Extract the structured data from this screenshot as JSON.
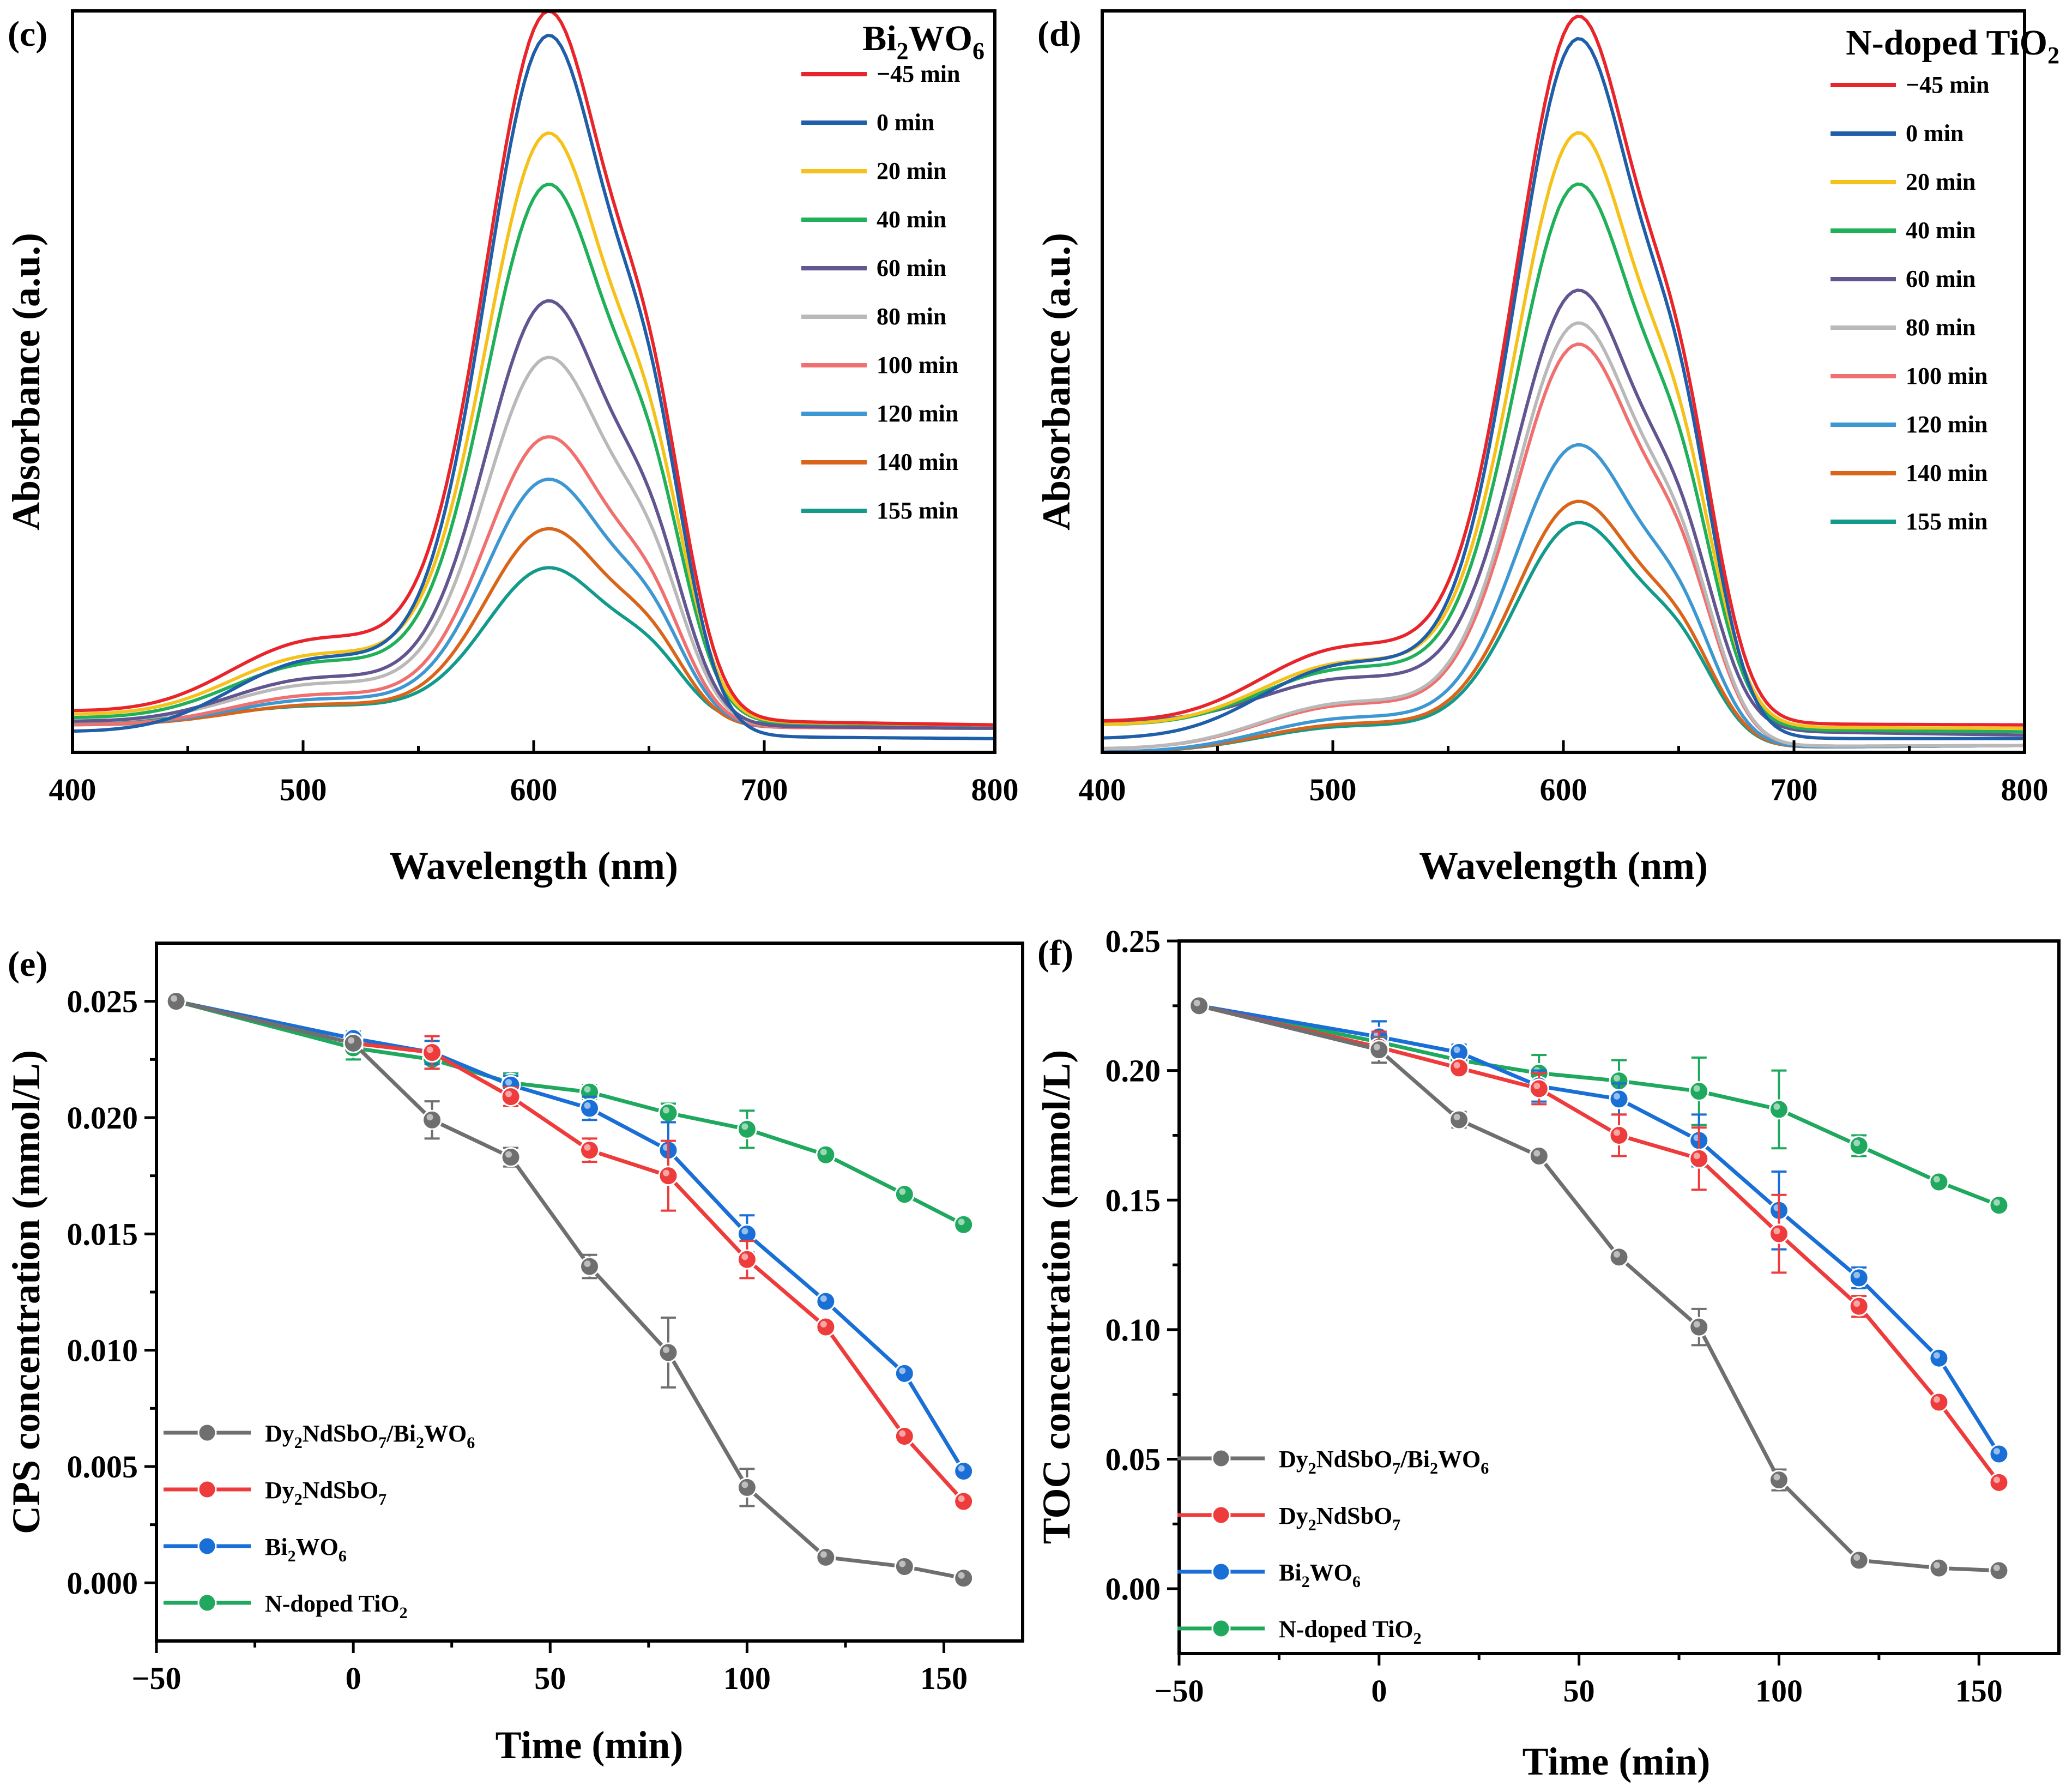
{
  "chart_data": [
    {
      "id": "c",
      "type": "line",
      "panel_label": "(c)",
      "title_parts": [
        "Bi",
        "2",
        "WO",
        "6"
      ],
      "xlabel": "Wavelength (nm)",
      "ylabel": "Absorbance (a.u.)",
      "xlim": [
        400,
        800
      ],
      "ylim": [
        0,
        1.08
      ],
      "xticks": [
        400,
        500,
        600,
        700,
        800
      ],
      "xtick_labels": [
        "400",
        "500",
        "600",
        "700",
        "800"
      ],
      "legend_position": "top-right",
      "series": [
        {
          "name": "−45 min",
          "color": "#e8252b",
          "peak": 1.0,
          "base_left": 0.06,
          "base_right": 0.04
        },
        {
          "name": "0 min",
          "color": "#1f5ea8",
          "peak": 0.99,
          "base_left": 0.03,
          "base_right": 0.02
        },
        {
          "name": "20 min",
          "color": "#f5c21b",
          "peak": 0.83,
          "base_left": 0.055,
          "base_right": 0.04
        },
        {
          "name": "40 min",
          "color": "#21b05a",
          "peak": 0.76,
          "base_left": 0.05,
          "base_right": 0.04
        },
        {
          "name": "60 min",
          "color": "#63558f",
          "peak": 0.6,
          "base_left": 0.045,
          "base_right": 0.035
        },
        {
          "name": "80 min",
          "color": "#b9b9b9",
          "peak": 0.52,
          "base_left": 0.045,
          "base_right": 0.035
        },
        {
          "name": "100 min",
          "color": "#f0706f",
          "peak": 0.41,
          "base_left": 0.04,
          "base_right": 0.035
        },
        {
          "name": "120 min",
          "color": "#3d97d1",
          "peak": 0.35,
          "base_left": 0.04,
          "base_right": 0.035
        },
        {
          "name": "140 min",
          "color": "#d9651a",
          "peak": 0.28,
          "base_left": 0.04,
          "base_right": 0.035
        },
        {
          "name": "155 min",
          "color": "#129a8a",
          "peak": 0.22,
          "base_left": 0.045,
          "base_right": 0.04
        }
      ]
    },
    {
      "id": "d",
      "type": "line",
      "panel_label": "(d)",
      "title_parts": [
        "N-doped TiO",
        "2",
        "",
        ""
      ],
      "xlabel": "Wavelength (nm)",
      "ylabel": "Absorbance (a.u.)",
      "xlim": [
        400,
        800
      ],
      "ylim": [
        0,
        1.08
      ],
      "xticks": [
        400,
        500,
        600,
        700,
        800
      ],
      "xtick_labels": [
        "400",
        "500",
        "600",
        "700",
        "800"
      ],
      "legend_position": "top-right",
      "series": [
        {
          "name": "−45 min",
          "color": "#e8252b",
          "peak": 1.0,
          "base_left": 0.045,
          "base_right": 0.04
        },
        {
          "name": "0 min",
          "color": "#1f5ea8",
          "peak": 0.99,
          "base_left": 0.02,
          "base_right": 0.02
        },
        {
          "name": "20 min",
          "color": "#f5c21b",
          "peak": 0.84,
          "base_left": 0.04,
          "base_right": 0.035
        },
        {
          "name": "40 min",
          "color": "#21b05a",
          "peak": 0.77,
          "base_left": 0.04,
          "base_right": 0.03
        },
        {
          "name": "60 min",
          "color": "#63558f",
          "peak": 0.62,
          "base_left": 0.045,
          "base_right": 0.025
        },
        {
          "name": "80 min",
          "color": "#b9b9b9",
          "peak": 0.6,
          "base_left": 0.005,
          "base_right": 0.01
        },
        {
          "name": "100 min",
          "color": "#f0706f",
          "peak": 0.57,
          "base_left": 0.005,
          "base_right": 0.01
        },
        {
          "name": "120 min",
          "color": "#3d97d1",
          "peak": 0.43,
          "base_left": 0.0,
          "base_right": 0.01
        },
        {
          "name": "140 min",
          "color": "#d9651a",
          "peak": 0.35,
          "base_left": 0.0,
          "base_right": 0.01
        },
        {
          "name": "155 min",
          "color": "#129a8a",
          "peak": 0.32,
          "base_left": 0.0,
          "base_right": 0.01
        }
      ]
    },
    {
      "id": "e",
      "type": "line",
      "panel_label": "(e)",
      "xlabel": "Time (min)",
      "ylabel": "CPS concentration (mmol/L)",
      "xlim": [
        -50,
        170
      ],
      "ylim": [
        -0.0025,
        0.0275
      ],
      "xticks": [
        -50,
        0,
        50,
        100,
        150
      ],
      "xtick_labels": [
        "−50",
        "0",
        "50",
        "100",
        "150"
      ],
      "yticks": [
        0.0,
        0.005,
        0.01,
        0.015,
        0.02,
        0.025
      ],
      "ytick_labels": [
        "0.000",
        "0.005",
        "0.010",
        "0.015",
        "0.020",
        "0.025"
      ],
      "legend_position": "bottom-left",
      "x": [
        -45,
        0,
        20,
        40,
        60,
        80,
        100,
        120,
        140,
        155
      ],
      "series": [
        {
          "name": "Dy2NdSbO7/Bi2WO6",
          "label_parts": [
            "Dy",
            "2",
            "NdSbO",
            "7",
            "/Bi",
            "2",
            "WO",
            "6"
          ],
          "color": "#6f6f6f",
          "values": [
            0.025,
            0.0232,
            0.0199,
            0.0183,
            0.0136,
            0.0099,
            0.0041,
            0.0011,
            0.0007,
            0.0002
          ],
          "errors": [
            0,
            0.0003,
            0.0008,
            0.0004,
            0.0005,
            0.0015,
            0.0008,
            0,
            0,
            0
          ]
        },
        {
          "name": "Dy2NdSbO7",
          "label_parts": [
            "Dy",
            "2",
            "NdSbO",
            "7"
          ],
          "color": "#ee3b3b",
          "values": [
            0.025,
            0.0232,
            0.0228,
            0.0209,
            0.0186,
            0.0175,
            0.0139,
            0.011,
            0.0063,
            0.0035
          ],
          "errors": [
            0,
            0.0003,
            0.0007,
            0.0004,
            0.0005,
            0.0015,
            0.0008,
            0,
            0,
            0
          ]
        },
        {
          "name": "Bi2WO6",
          "label_parts": [
            "Bi",
            "2",
            "WO",
            "6"
          ],
          "color": "#1a6fd6",
          "values": [
            0.025,
            0.0234,
            0.0228,
            0.0214,
            0.0204,
            0.0186,
            0.015,
            0.0121,
            0.009,
            0.0048
          ],
          "errors": [
            0,
            0.0003,
            0.0005,
            0.0004,
            0.0005,
            0.0012,
            0.0008,
            0,
            0,
            0
          ]
        },
        {
          "name": "N-doped TiO2",
          "label_parts": [
            "N-doped TiO",
            "2"
          ],
          "color": "#1fa85e",
          "values": [
            0.025,
            0.023,
            0.0225,
            0.0215,
            0.0211,
            0.0202,
            0.0195,
            0.0184,
            0.0167,
            0.0154
          ],
          "errors": [
            0,
            0.0005,
            0.0004,
            0.0004,
            0.0003,
            0.0004,
            0.0008,
            0,
            0,
            0
          ]
        }
      ]
    },
    {
      "id": "f",
      "type": "line",
      "panel_label": "(f)",
      "xlabel": "Time (min)",
      "ylabel": "TOC concentration (mmol/L)",
      "xlim": [
        -50,
        170
      ],
      "ylim": [
        -0.025,
        0.25
      ],
      "xticks": [
        -50,
        0,
        50,
        100,
        150
      ],
      "xtick_labels": [
        "−50",
        "0",
        "50",
        "100",
        "150"
      ],
      "yticks": [
        0.0,
        0.05,
        0.1,
        0.15,
        0.2,
        0.25
      ],
      "ytick_labels": [
        "0.00",
        "0.05",
        "0.10",
        "0.15",
        "0.20",
        "0.25"
      ],
      "legend_position": "bottom-left",
      "x": [
        -45,
        0,
        20,
        40,
        60,
        80,
        100,
        120,
        140,
        155
      ],
      "series": [
        {
          "name": "Dy2NdSbO7/Bi2WO6",
          "label_parts": [
            "Dy",
            "2",
            "NdSbO",
            "7",
            "/Bi",
            "2",
            "WO",
            "6"
          ],
          "color": "#6f6f6f",
          "values": [
            0.225,
            0.208,
            0.181,
            0.167,
            0.128,
            0.101,
            0.042,
            0.011,
            0.008,
            0.007
          ],
          "errors": [
            0,
            0.005,
            0.003,
            0.002,
            0.002,
            0.007,
            0.004,
            0,
            0,
            0
          ]
        },
        {
          "name": "Dy2NdSbO7",
          "label_parts": [
            "Dy",
            "2",
            "NdSbO",
            "7"
          ],
          "color": "#ee3b3b",
          "values": [
            0.225,
            0.209,
            0.201,
            0.193,
            0.175,
            0.166,
            0.137,
            0.109,
            0.072,
            0.041
          ],
          "errors": [
            0,
            0.006,
            0.002,
            0.006,
            0.008,
            0.012,
            0.015,
            0.004,
            0,
            0
          ]
        },
        {
          "name": "Bi2WO6",
          "label_parts": [
            "Bi",
            "2",
            "WO",
            "6"
          ],
          "color": "#1a6fd6",
          "values": [
            0.225,
            0.213,
            0.207,
            0.194,
            0.189,
            0.173,
            0.146,
            0.12,
            0.089,
            0.052
          ],
          "errors": [
            0,
            0.006,
            0.003,
            0.006,
            0.006,
            0.01,
            0.015,
            0.004,
            0,
            0
          ]
        },
        {
          "name": "N-doped TiO2",
          "label_parts": [
            "N-doped TiO",
            "2"
          ],
          "color": "#1fa85e",
          "values": [
            0.225,
            0.211,
            0.204,
            0.199,
            0.196,
            0.192,
            0.185,
            0.171,
            0.157,
            0.148
          ],
          "errors": [
            0,
            0.008,
            0.002,
            0.007,
            0.008,
            0.013,
            0.015,
            0.004,
            0,
            0
          ]
        }
      ]
    }
  ]
}
